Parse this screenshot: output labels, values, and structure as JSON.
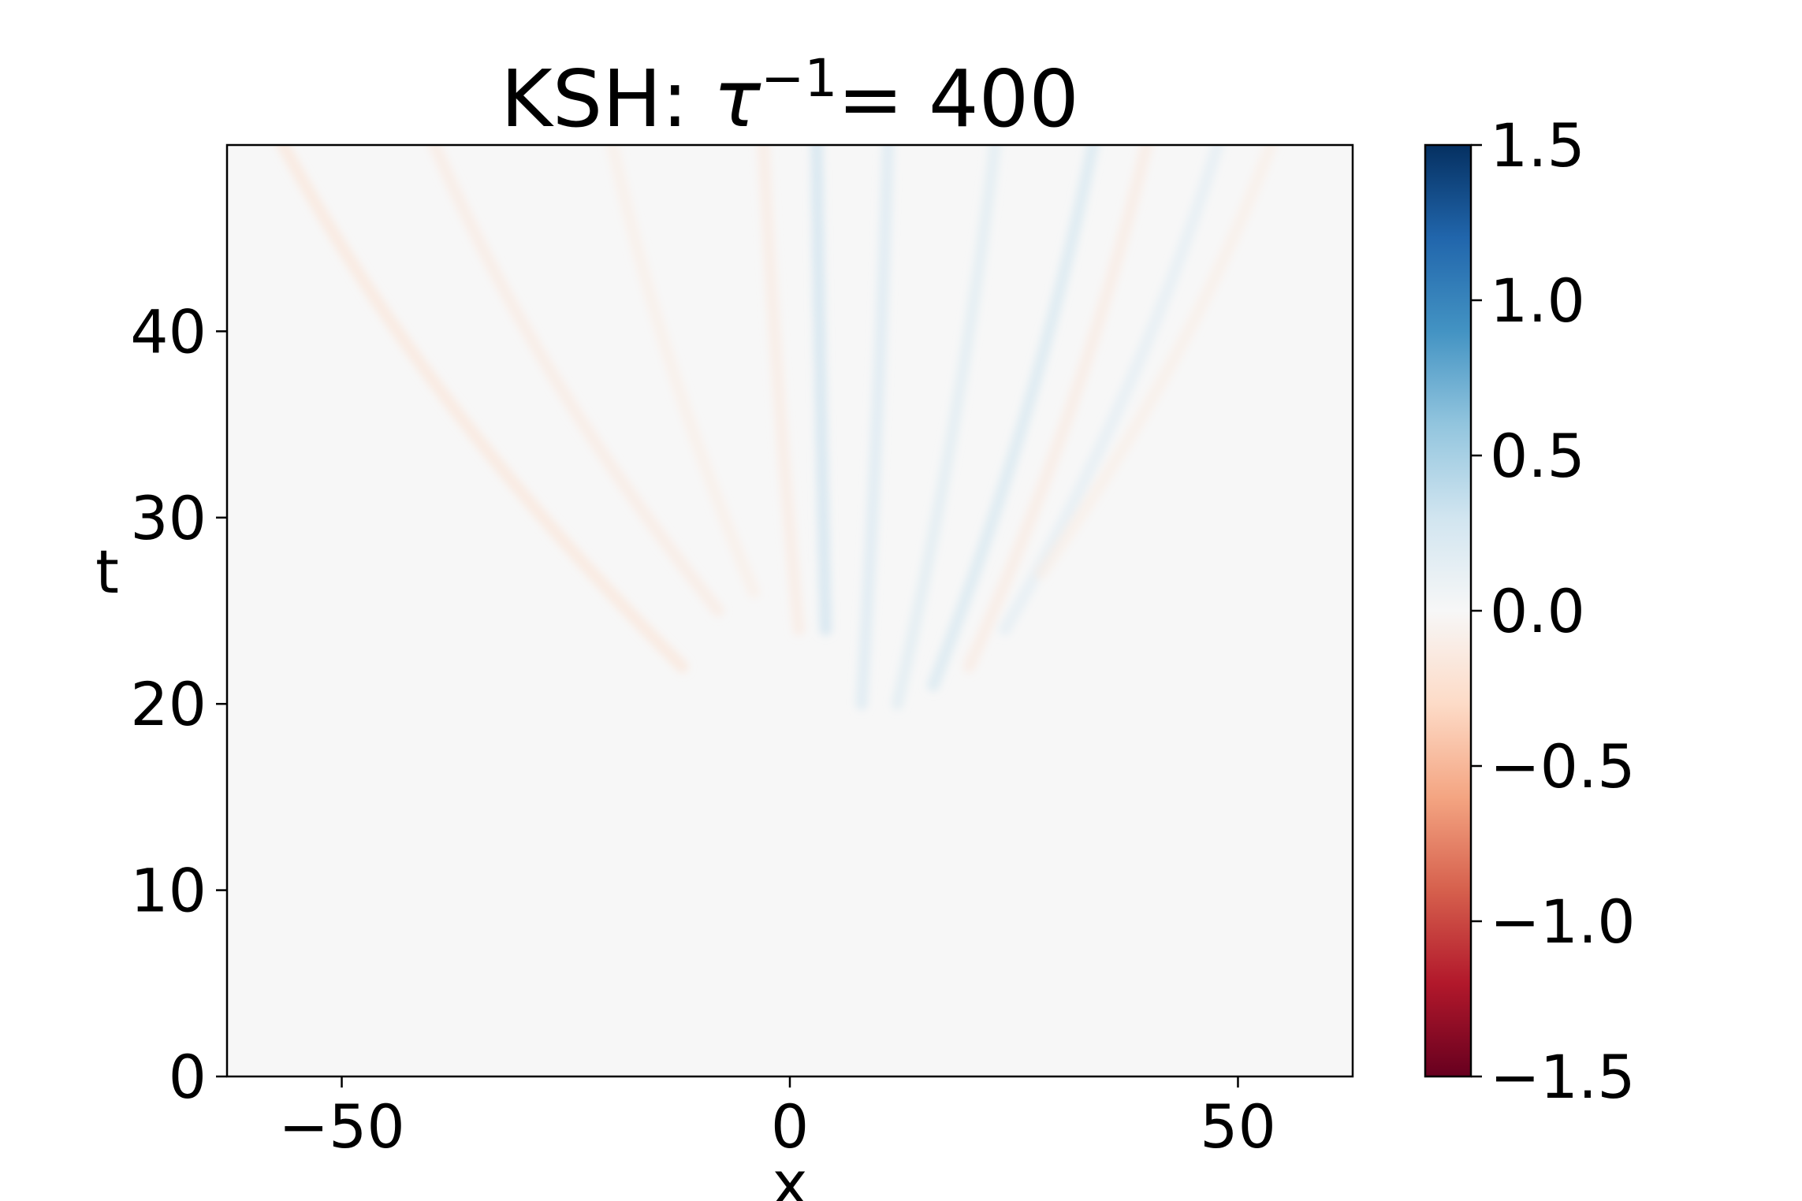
{
  "chart_data": {
    "type": "heatmap",
    "title_prefix": "KSH: ",
    "title_symbol": "τ",
    "title_superscript": "−1",
    "title_suffix": "= 400",
    "xlabel": "x",
    "ylabel": "t",
    "xlim": [
      -62.8,
      62.8
    ],
    "ylim": [
      0,
      50
    ],
    "xticks": [
      {
        "value": -50,
        "label": "−50"
      },
      {
        "value": 0,
        "label": "0"
      },
      {
        "value": 50,
        "label": "50"
      }
    ],
    "yticks": [
      {
        "value": 0,
        "label": "0"
      },
      {
        "value": 10,
        "label": "10"
      },
      {
        "value": 20,
        "label": "20"
      },
      {
        "value": 30,
        "label": "30"
      },
      {
        "value": 40,
        "label": "40"
      }
    ],
    "colormap": "RdBu",
    "vmin": -1.5,
    "vmax": 1.5,
    "colorbar_ticks": [
      {
        "value": 1.5,
        "label": "1.5"
      },
      {
        "value": 1.0,
        "label": "1.0"
      },
      {
        "value": 0.5,
        "label": "0.5"
      },
      {
        "value": 0.0,
        "label": "0.0"
      },
      {
        "value": -0.5,
        "label": "−0.5"
      },
      {
        "value": -1.0,
        "label": "−1.0"
      },
      {
        "value": -1.5,
        "label": "−1.5"
      }
    ],
    "colormap_stops": [
      "#67001f",
      "#b2182b",
      "#d6604d",
      "#f4a582",
      "#fddbc7",
      "#f7f7f7",
      "#d1e5f0",
      "#92c5de",
      "#4393c3",
      "#2166ac",
      "#053061"
    ],
    "streaks": [
      {
        "x0": -12,
        "x1": -57,
        "t0": 22,
        "t1": 50,
        "value": -0.06
      },
      {
        "x0": -8,
        "x1": -40,
        "t0": 25,
        "t1": 50,
        "value": -0.04
      },
      {
        "x0": -4,
        "x1": -20,
        "t0": 26,
        "t1": 50,
        "value": -0.03
      },
      {
        "x0": 1,
        "x1": -3,
        "t0": 24,
        "t1": 50,
        "value": -0.04
      },
      {
        "x0": 4,
        "x1": 3,
        "t0": 24,
        "t1": 50,
        "value": 0.09
      },
      {
        "x0": 8,
        "x1": 11,
        "t0": 20,
        "t1": 50,
        "value": 0.07
      },
      {
        "x0": 12,
        "x1": 23,
        "t0": 20,
        "t1": 50,
        "value": 0.06
      },
      {
        "x0": 16,
        "x1": 34,
        "t0": 21,
        "t1": 50,
        "value": 0.08
      },
      {
        "x0": 20,
        "x1": 40,
        "t0": 22,
        "t1": 50,
        "value": -0.04
      },
      {
        "x0": 24,
        "x1": 48,
        "t0": 24,
        "t1": 50,
        "value": 0.05
      },
      {
        "x0": 28,
        "x1": 54,
        "t0": 27,
        "t1": 50,
        "value": -0.03
      }
    ]
  }
}
